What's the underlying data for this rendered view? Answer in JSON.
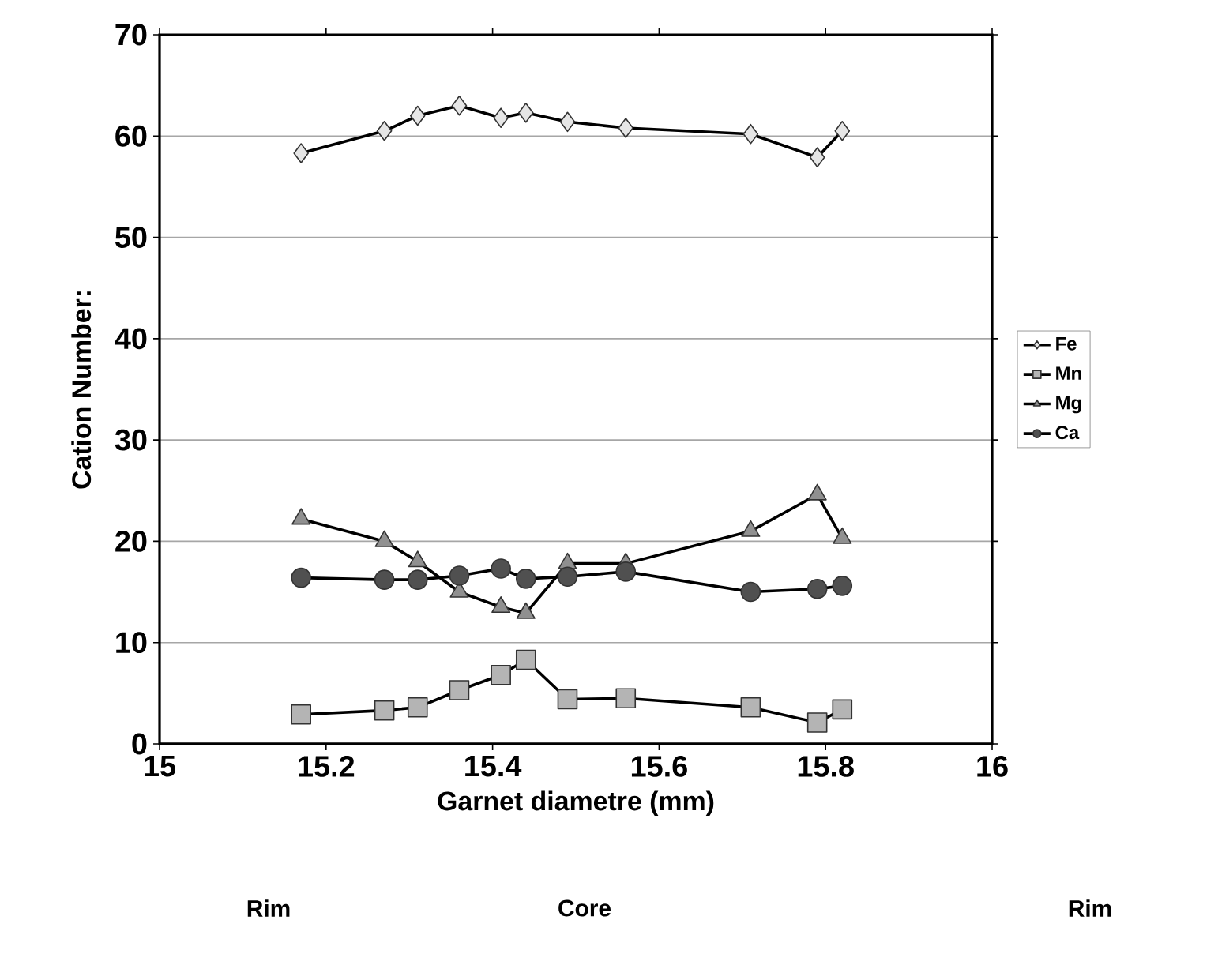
{
  "chart_data": {
    "type": "line",
    "xlabel": "Garnet diametre (mm)",
    "ylabel": "Cation Number:",
    "x": [
      15.17,
      15.27,
      15.31,
      15.36,
      15.41,
      15.44,
      15.49,
      15.56,
      15.71,
      15.79,
      15.82
    ],
    "series": [
      {
        "name": "Fe",
        "color": "#e6e6e6",
        "marker": "diamond",
        "values": [
          58.3,
          60.5,
          62.0,
          63.0,
          61.8,
          62.3,
          61.4,
          60.8,
          60.2,
          57.9,
          60.5
        ]
      },
      {
        "name": "Mn",
        "color": "#b4b4b4",
        "marker": "square",
        "values": [
          2.9,
          3.3,
          3.6,
          5.3,
          6.8,
          8.3,
          4.4,
          4.5,
          3.6,
          2.1,
          3.4
        ]
      },
      {
        "name": "Mg",
        "color": "#909090",
        "marker": "triangle",
        "values": [
          22.2,
          20.0,
          18.0,
          15.0,
          13.5,
          12.9,
          17.8,
          17.8,
          21.0,
          24.6,
          20.3
        ]
      },
      {
        "name": "Ca",
        "color": "#505050",
        "marker": "circle",
        "values": [
          16.4,
          16.2,
          16.2,
          16.6,
          17.3,
          16.3,
          16.5,
          17.0,
          15.0,
          15.3,
          15.6
        ]
      }
    ],
    "xlim": [
      15,
      16
    ],
    "xticks": [
      15,
      15.2,
      15.4,
      15.6,
      15.8,
      16
    ],
    "ylim": [
      0,
      70
    ],
    "yticks": [
      0,
      10,
      20,
      30,
      40,
      50,
      60,
      70
    ],
    "grid": "y",
    "legend": "right",
    "line_style": "solid",
    "annotations": [
      "Rim",
      "Core",
      "Rim"
    ]
  }
}
